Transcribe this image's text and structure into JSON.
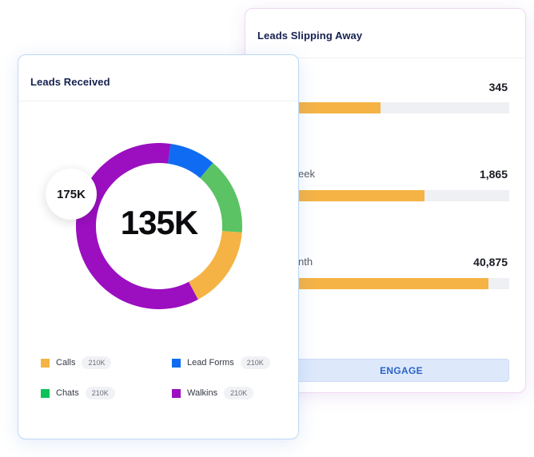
{
  "slipping": {
    "title": "Leads Slipping Away",
    "engage_label": "ENGAGE",
    "rows": [
      {
        "label": "",
        "value": "345",
        "fill": 0.39
      },
      {
        "label": "eek",
        "value": "1,865",
        "fill": 0.6
      },
      {
        "label": "nth",
        "value": "40,875",
        "fill": 0.9
      }
    ]
  },
  "received": {
    "title": "Leads Received",
    "center_value": "135K",
    "bubble_value": "175K",
    "legend": [
      {
        "label": "Calls",
        "count": "210K",
        "color": "#f5b345"
      },
      {
        "label": "Lead Forms",
        "count": "210K",
        "color": "#0f6cf2"
      },
      {
        "label": "Chats",
        "count": "210K",
        "color": "#0ec25a"
      },
      {
        "label": "Walkins",
        "count": "210K",
        "color": "#9b0fc0"
      }
    ],
    "segments": [
      {
        "name": "Lead Forms",
        "share": 0.09,
        "color": "#0f6cf2"
      },
      {
        "name": "Chats",
        "share": 0.15,
        "color": "#5bc364"
      },
      {
        "name": "Calls",
        "share": 0.16,
        "color": "#f5b345"
      },
      {
        "name": "Walkins",
        "share": 0.6,
        "color": "#9b0fc0"
      }
    ]
  }
}
